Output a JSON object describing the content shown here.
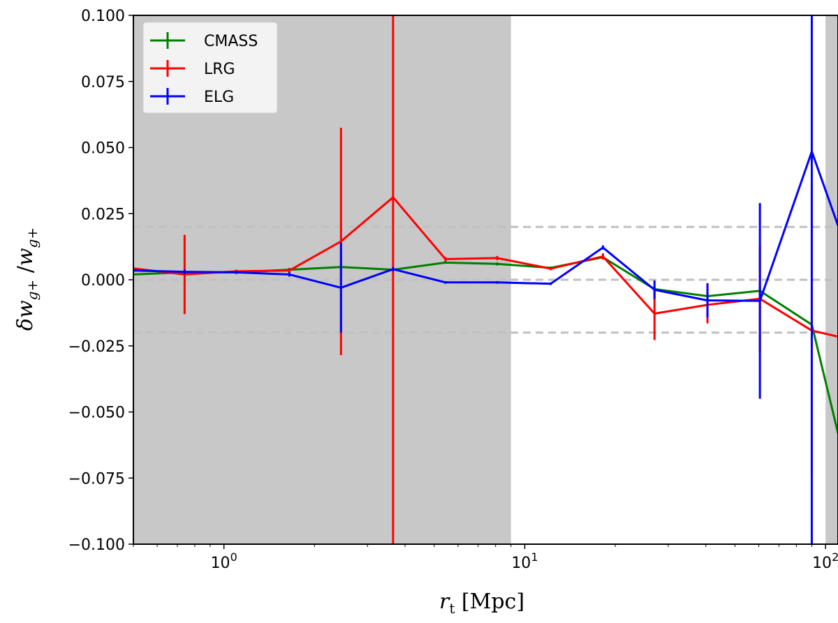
{
  "chart_data": {
    "type": "line",
    "xscale": "log",
    "xlim": [
      0.5,
      110
    ],
    "ylim": [
      -0.1,
      0.1
    ],
    "xlabel": "r_t [Mpc]",
    "ylabel": "δw_g+ / w_g+",
    "yticks": [
      "0.100",
      "0.075",
      "0.050",
      "0.025",
      "0.000",
      "−0.025",
      "−0.050",
      "−0.075",
      "−0.100"
    ],
    "ytick_values": [
      0.1,
      0.075,
      0.05,
      0.025,
      0.0,
      -0.025,
      -0.05,
      -0.075,
      -0.1
    ],
    "xtick_values": [
      1,
      10,
      100
    ],
    "xtick_labels": [
      {
        "base": "10",
        "exp": "0"
      },
      {
        "base": "10",
        "exp": "1"
      },
      {
        "base": "10",
        "exp": "2"
      }
    ],
    "shaded_regions": [
      [
        0.5,
        9
      ],
      [
        100,
        110
      ]
    ],
    "reference_lines": [
      0.02,
      0.0,
      -0.02
    ],
    "legend": {
      "location": "upper-left",
      "entries": [
        "CMASS",
        "LRG",
        "ELG"
      ]
    },
    "series": [
      {
        "name": "CMASS",
        "color": "#007f00",
        "x": [
          0.5,
          0.74,
          1.1,
          1.65,
          2.45,
          3.65,
          5.45,
          8.1,
          12.2,
          18.2,
          27.0,
          40.5,
          60.5,
          90.0,
          110
        ],
        "y": [
          0.002,
          0.0028,
          0.0028,
          0.0038,
          0.0048,
          0.0038,
          0.0065,
          0.006,
          0.0045,
          0.0085,
          -0.0035,
          -0.0062,
          -0.0042,
          -0.017,
          -0.058
        ],
        "yerr": [
          0.0,
          0.0008,
          0.0006,
          0.0007,
          0.0012,
          0.0008,
          0.0005,
          0.0006,
          0.0005,
          0.0008,
          0.001,
          0.0012,
          0.0015,
          0.001,
          0.0
        ]
      },
      {
        "name": "LRG",
        "color": "#ff0000",
        "x": [
          0.5,
          0.74,
          1.1,
          1.65,
          2.45,
          3.65,
          5.45,
          8.1,
          12.2,
          18.2,
          27.0,
          40.5,
          60.5,
          90.0,
          110
        ],
        "y": [
          0.0043,
          0.002,
          0.0032,
          0.0035,
          0.0145,
          0.0312,
          0.0078,
          0.0082,
          0.0042,
          0.0088,
          -0.0128,
          -0.0095,
          -0.0072,
          -0.0192,
          -0.0215
        ],
        "yerr": [
          0.0,
          0.015,
          0.0006,
          0.0008,
          0.043,
          0.14,
          0.0008,
          0.0008,
          0.0006,
          0.0012,
          0.01,
          0.007,
          0.02,
          0.055,
          0.0
        ]
      },
      {
        "name": "ELG",
        "color": "#0000ff",
        "x": [
          0.5,
          0.74,
          1.1,
          1.65,
          2.45,
          3.65,
          5.45,
          8.1,
          12.2,
          18.2,
          27.0,
          40.5,
          60.5,
          90.0,
          110
        ],
        "y": [
          0.0035,
          0.003,
          0.0028,
          0.002,
          -0.003,
          0.004,
          -0.001,
          -0.001,
          -0.0015,
          0.0122,
          -0.0038,
          -0.0078,
          -0.008,
          0.0485,
          0.0205
        ],
        "yerr": [
          0.0,
          0.0008,
          0.0006,
          0.0008,
          0.017,
          0.0008,
          0.0005,
          0.0005,
          0.0005,
          0.0008,
          0.0035,
          0.0065,
          0.037,
          0.16,
          0.0
        ]
      }
    ]
  }
}
